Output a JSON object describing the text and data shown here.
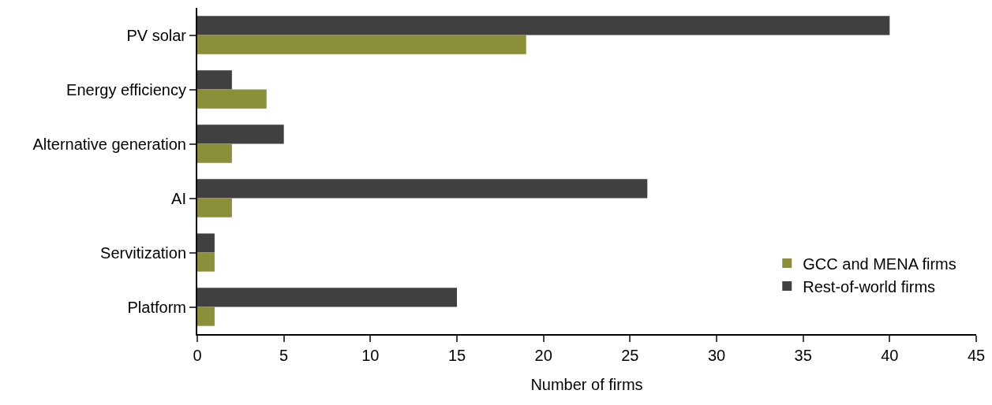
{
  "chart_data": {
    "type": "bar",
    "orientation": "horizontal",
    "xlabel": "Number of firms",
    "categories": [
      "PV solar",
      "Energy efficiency",
      "Alternative generation",
      "AI",
      "Servitization",
      "Platform"
    ],
    "series": [
      {
        "name": "GCC and MENA firms",
        "color": "#8b8f3a",
        "values": [
          19,
          4,
          2,
          2,
          1,
          1
        ]
      },
      {
        "name": "Rest-of-world firms",
        "color": "#404040",
        "values": [
          40,
          2,
          5,
          26,
          1,
          15
        ]
      }
    ],
    "xlim": [
      0,
      45
    ],
    "xticks": [
      0,
      5,
      10,
      15,
      20,
      25,
      30,
      35,
      40,
      45
    ],
    "grid": false,
    "legend": "bottom right"
  }
}
